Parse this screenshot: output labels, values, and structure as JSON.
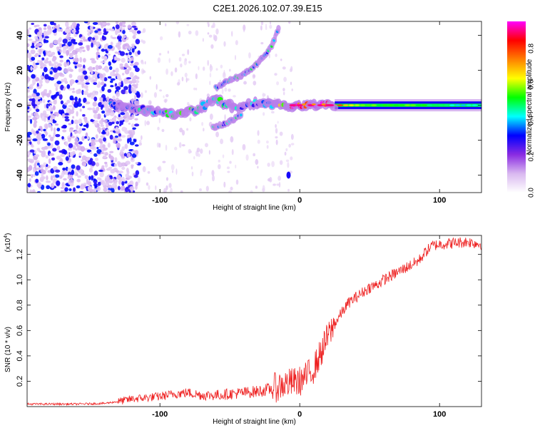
{
  "title": "C2E1.2026.102.07.39.E15",
  "chart_data": [
    {
      "type": "heatmap",
      "name": "spectrogram",
      "xlabel": "Height of straight line (km)",
      "ylabel": "Frequency (Hz)",
      "xlim": [
        -195,
        130
      ],
      "ylim": [
        -50,
        48
      ],
      "x_ticks": [
        -100,
        0,
        100
      ],
      "y_ticks": [
        -40,
        -20,
        0,
        20,
        40
      ],
      "colorbar": {
        "label": "Normalized spectral amplitude",
        "range": [
          0.0,
          0.95
        ],
        "ticks": [
          0.0,
          0.2,
          0.4,
          0.6,
          0.8
        ],
        "colors": [
          "#ffffff",
          "#d9b8f0",
          "#8a2be2",
          "#0000ff",
          "#00ffff",
          "#00ff00",
          "#ffff00",
          "#ff8000",
          "#ff0000",
          "#ff00ff"
        ]
      },
      "features": [
        {
          "name": "main-tone",
          "x": [
            -130,
            -110,
            -90,
            -75,
            -60,
            -45,
            -30,
            -15,
            0,
            20,
            50,
            80,
            110,
            130
          ],
          "freq": [
            0,
            -3,
            -5,
            -3,
            3,
            -2,
            2,
            0,
            0,
            0,
            0,
            0,
            0,
            0
          ],
          "amplitude": [
            0.3,
            0.4,
            0.45,
            0.45,
            0.45,
            0.4,
            0.35,
            0.5,
            0.9,
            0.85,
            0.55,
            0.55,
            0.45,
            0.4
          ]
        },
        {
          "name": "upper-branch",
          "x": [
            -60,
            -50,
            -40,
            -30,
            -20,
            -15
          ],
          "freq": [
            10,
            14,
            18,
            24,
            34,
            45
          ]
        },
        {
          "name": "lower-branch",
          "x": [
            -62,
            -52,
            -42
          ],
          "freq": [
            -13,
            -10,
            -6
          ]
        },
        {
          "name": "isolated-spot",
          "x": [
            -8
          ],
          "freq": [
            -40
          ]
        }
      ]
    },
    {
      "type": "line",
      "name": "snr",
      "xlabel": "Height of straight line (km)",
      "ylabel": "SNR (10 * v/v)",
      "y_scale_note": "(x10",
      "y_scale_exp": "4",
      "xlim": [
        -195,
        130
      ],
      "ylim": [
        0,
        1.35
      ],
      "x_ticks": [
        -100,
        0,
        100
      ],
      "y_ticks": [
        0.2,
        0.4,
        0.6,
        0.8,
        1.0,
        1.2
      ],
      "color": "#ee2020",
      "series": [
        {
          "name": "SNR",
          "x": [
            -195,
            -160,
            -140,
            -130,
            -120,
            -110,
            -100,
            -90,
            -80,
            -70,
            -60,
            -50,
            -40,
            -30,
            -20,
            -10,
            0,
            5,
            10,
            15,
            20,
            25,
            30,
            35,
            40,
            45,
            50,
            55,
            60,
            65,
            70,
            75,
            80,
            85,
            90,
            95,
            100,
            110,
            120,
            130
          ],
          "values": [
            0.02,
            0.02,
            0.025,
            0.04,
            0.06,
            0.07,
            0.08,
            0.1,
            0.11,
            0.09,
            0.09,
            0.1,
            0.11,
            0.12,
            0.14,
            0.18,
            0.2,
            0.24,
            0.3,
            0.42,
            0.55,
            0.65,
            0.74,
            0.82,
            0.86,
            0.9,
            0.94,
            0.96,
            1.0,
            1.03,
            1.06,
            1.09,
            1.12,
            1.15,
            1.22,
            1.27,
            1.28,
            1.29,
            1.3,
            1.28
          ]
        }
      ]
    }
  ]
}
